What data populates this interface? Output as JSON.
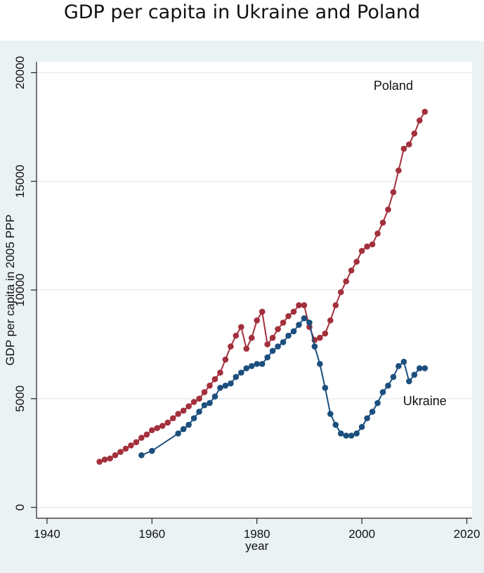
{
  "title": "GDP per capita in Ukraine and Poland",
  "chart_data": {
    "type": "line",
    "title": "GDP per capita in Ukraine and Poland",
    "xlabel": "year",
    "ylabel": "GDP per capita in 2005 PPP",
    "xlim": [
      1938,
      2021
    ],
    "ylim": [
      -500,
      20500
    ],
    "xticks": [
      1940,
      1960,
      1980,
      2000,
      2020
    ],
    "yticks": [
      0,
      5000,
      10000,
      15000,
      20000
    ],
    "grid": true,
    "colors": {
      "Poland": "#a3303c",
      "Ukraine": "#1b4f7d",
      "background": "#eaf2f3",
      "plot_bg": "#ffffff"
    },
    "series": [
      {
        "name": "Poland",
        "x": [
          1950,
          1951,
          1952,
          1953,
          1954,
          1955,
          1956,
          1957,
          1958,
          1959,
          1960,
          1961,
          1962,
          1963,
          1964,
          1965,
          1966,
          1967,
          1968,
          1969,
          1970,
          1971,
          1972,
          1973,
          1974,
          1975,
          1976,
          1977,
          1978,
          1979,
          1980,
          1981,
          1982,
          1983,
          1984,
          1985,
          1986,
          1987,
          1988,
          1989,
          1990,
          1991,
          1992,
          1993,
          1994,
          1995,
          1996,
          1997,
          1998,
          1999,
          2000,
          2001,
          2002,
          2003,
          2004,
          2005,
          2006,
          2007,
          2008,
          2009,
          2010,
          2011,
          2012
        ],
        "y": [
          2100,
          2200,
          2250,
          2400,
          2550,
          2700,
          2850,
          3000,
          3200,
          3350,
          3550,
          3650,
          3750,
          3900,
          4100,
          4300,
          4450,
          4650,
          4850,
          5000,
          5300,
          5600,
          5900,
          6200,
          6800,
          7400,
          7900,
          8300,
          7300,
          7800,
          8600,
          9000,
          7500,
          7800,
          8200,
          8500,
          8800,
          9000,
          9300,
          9300,
          8300,
          7700,
          7800,
          8000,
          8600,
          9300,
          9900,
          10400,
          10900,
          11300,
          11800,
          12000,
          12100,
          12600,
          13100,
          13700,
          14500,
          15500,
          16500,
          16700,
          17200,
          17800,
          18200
        ]
      },
      {
        "name": "Ukraine",
        "x": [
          1958,
          1960,
          1965,
          1966,
          1967,
          1968,
          1969,
          1970,
          1971,
          1972,
          1973,
          1974,
          1975,
          1976,
          1977,
          1978,
          1979,
          1980,
          1981,
          1982,
          1983,
          1984,
          1985,
          1986,
          1987,
          1988,
          1989,
          1990,
          1991,
          1992,
          1993,
          1994,
          1995,
          1996,
          1997,
          1998,
          1999,
          2000,
          2001,
          2002,
          2003,
          2004,
          2005,
          2006,
          2007,
          2008,
          2009,
          2010,
          2011,
          2012
        ],
        "y": [
          2400,
          2600,
          3400,
          3600,
          3800,
          4100,
          4400,
          4700,
          4800,
          5100,
          5500,
          5600,
          5700,
          6000,
          6200,
          6400,
          6500,
          6600,
          6600,
          6900,
          7200,
          7400,
          7600,
          7900,
          8100,
          8400,
          8700,
          8500,
          7400,
          6600,
          5500,
          4300,
          3800,
          3400,
          3300,
          3300,
          3400,
          3700,
          4100,
          4400,
          4800,
          5300,
          5600,
          6000,
          6500,
          6700,
          5800,
          6100,
          6400,
          6400
        ]
      }
    ],
    "annotations": [
      {
        "text": "Poland",
        "x": 2006,
        "y": 19200
      },
      {
        "text": "Ukraine",
        "x": 2012,
        "y": 4700
      }
    ]
  }
}
